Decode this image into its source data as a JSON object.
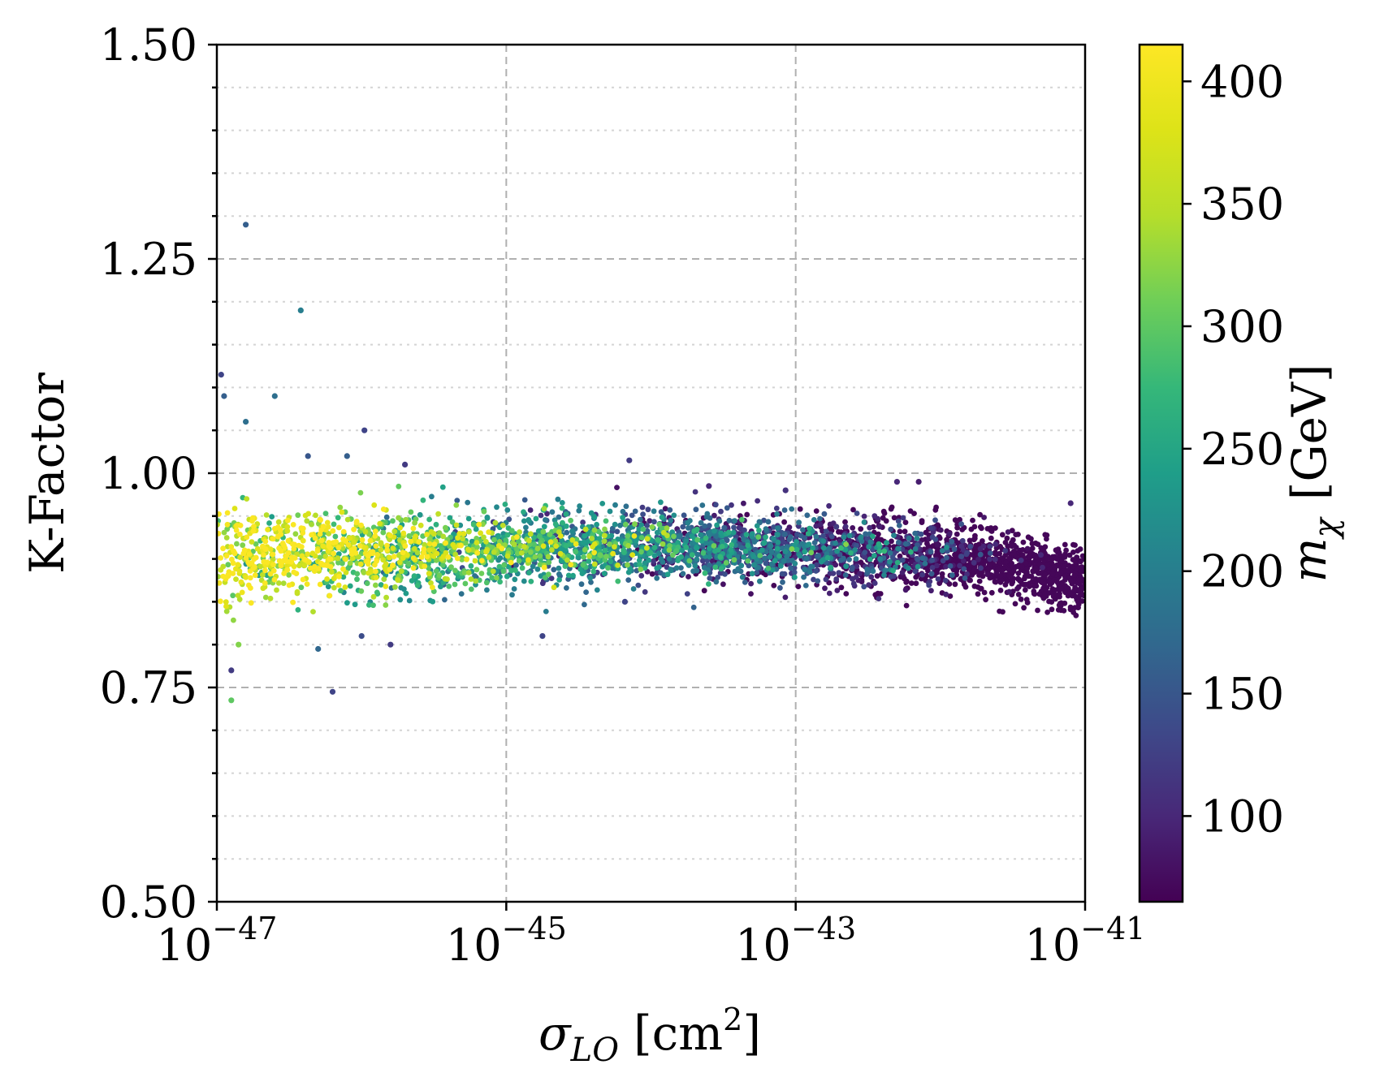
{
  "chart_data": {
    "type": "scatter",
    "title": "",
    "xlabel": "σ_LO  [cm²]",
    "xlabel_parts": {
      "symbol": "σ",
      "subscript": "LO",
      "unit": "cm",
      "unit_exp": "2"
    },
    "ylabel": "K-Factor",
    "x_scale": "log",
    "xlim_log10": [
      -47,
      -41
    ],
    "ylim": [
      0.5,
      1.5
    ],
    "x_ticks": [
      {
        "base": "10",
        "exp": "−47",
        "log10": -47
      },
      {
        "base": "10",
        "exp": "−45",
        "log10": -45
      },
      {
        "base": "10",
        "exp": "−43",
        "log10": -43
      },
      {
        "base": "10",
        "exp": "−41",
        "log10": -41
      }
    ],
    "y_ticks": [
      {
        "label": "0.50",
        "value": 0.5
      },
      {
        "label": "0.75",
        "value": 0.75
      },
      {
        "label": "1.00",
        "value": 1.0
      },
      {
        "label": "1.25",
        "value": 1.25
      },
      {
        "label": "1.50",
        "value": 1.5
      }
    ],
    "y_minor_step": 0.05,
    "grid": true,
    "colorbar": {
      "label": "m_χ  [GeV]",
      "label_parts": {
        "symbol": "m",
        "subscript": "χ",
        "unit": "[GeV]"
      },
      "colormap": "viridis",
      "range": [
        65,
        415
      ],
      "ticks": [
        "100",
        "150",
        "200",
        "250",
        "300",
        "350",
        "400"
      ],
      "tick_values": [
        100,
        150,
        200,
        250,
        300,
        350,
        400
      ]
    },
    "band": {
      "description": "dense scatter of ~4000 points",
      "center_k": [
        {
          "log10_sigma": -47.0,
          "k": 0.905
        },
        {
          "log10_sigma": -45.0,
          "k": 0.91
        },
        {
          "log10_sigma": -44.0,
          "k": 0.915
        },
        {
          "log10_sigma": -43.0,
          "k": 0.91
        },
        {
          "log10_sigma": -42.0,
          "k": 0.905
        },
        {
          "log10_sigma": -41.5,
          "k": 0.895
        },
        {
          "log10_sigma": -41.0,
          "k": 0.88
        }
      ]
    },
    "outliers": [
      {
        "log10_sigma": -46.8,
        "k": 1.29,
        "m": 160
      },
      {
        "log10_sigma": -46.42,
        "k": 1.19,
        "m": 200
      },
      {
        "log10_sigma": -46.97,
        "k": 1.115,
        "m": 130
      },
      {
        "log10_sigma": -46.95,
        "k": 1.09,
        "m": 160
      },
      {
        "log10_sigma": -46.6,
        "k": 1.09,
        "m": 180
      },
      {
        "log10_sigma": -46.8,
        "k": 1.06,
        "m": 180
      },
      {
        "log10_sigma": -45.98,
        "k": 1.05,
        "m": 130
      },
      {
        "log10_sigma": -46.37,
        "k": 1.02,
        "m": 150
      },
      {
        "log10_sigma": -46.1,
        "k": 1.02,
        "m": 160
      },
      {
        "log10_sigma": -45.7,
        "k": 1.01,
        "m": 120
      },
      {
        "log10_sigma": -44.15,
        "k": 1.015,
        "m": 120
      },
      {
        "log10_sigma": -43.6,
        "k": 0.985,
        "m": 100
      },
      {
        "log10_sigma": -43.07,
        "k": 0.98,
        "m": 110
      },
      {
        "log10_sigma": -42.3,
        "k": 0.99,
        "m": 100
      },
      {
        "log10_sigma": -42.15,
        "k": 0.99,
        "m": 90
      },
      {
        "log10_sigma": -41.1,
        "k": 0.965,
        "m": 100
      },
      {
        "log10_sigma": -46.9,
        "k": 0.77,
        "m": 120
      },
      {
        "log10_sigma": -46.85,
        "k": 0.8,
        "m": 320
      },
      {
        "log10_sigma": -46.9,
        "k": 0.735,
        "m": 300
      },
      {
        "log10_sigma": -46.2,
        "k": 0.745,
        "m": 130
      },
      {
        "log10_sigma": -46.3,
        "k": 0.795,
        "m": 170
      },
      {
        "log10_sigma": -46.0,
        "k": 0.81,
        "m": 140
      },
      {
        "log10_sigma": -45.8,
        "k": 0.8,
        "m": 120
      },
      {
        "log10_sigma": -44.75,
        "k": 0.81,
        "m": 130
      },
      {
        "log10_sigma": -44.18,
        "k": 0.85,
        "m": 130
      }
    ]
  }
}
